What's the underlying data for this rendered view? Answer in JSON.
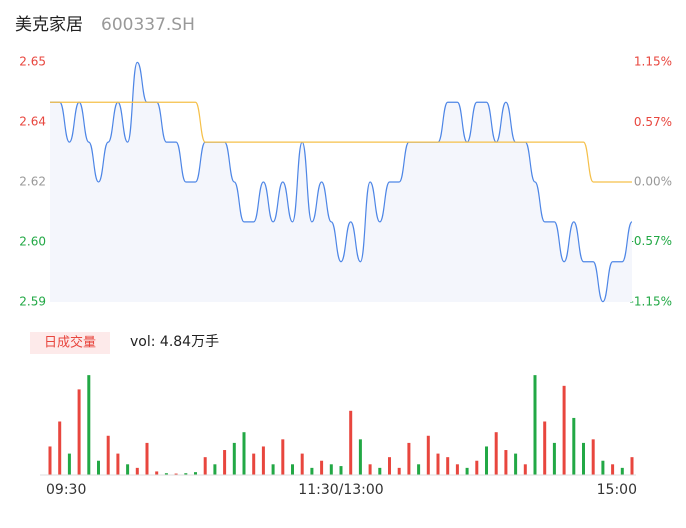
{
  "header": {
    "name": "美克家居",
    "code": "600337.SH"
  },
  "chart_data": [
    {
      "type": "line",
      "ylim": [
        2.5899,
        2.6501
      ],
      "yticks": [
        {
          "value": 2.6501,
          "label": "2.65"
        },
        {
          "value": 2.6351,
          "label": "2.64"
        },
        {
          "value": 2.62,
          "label": "2.62"
        },
        {
          "value": 2.6049,
          "label": "2.60"
        },
        {
          "value": 2.5899,
          "label": "2.59"
        }
      ],
      "y2lim": [
        -1.15,
        1.15
      ],
      "y2ticks": [
        {
          "value": 1.15,
          "label": "1.15%"
        },
        {
          "value": 0.57,
          "label": "0.57%"
        },
        {
          "value": 0,
          "label": "0.00%"
        },
        {
          "value": -0.57,
          "label": "-0.57%"
        },
        {
          "value": -1.15,
          "label": "-1.15%"
        }
      ],
      "series": [
        {
          "color": "#4e86e6",
          "area_color": "#f4f6fc",
          "values": [
            2.64,
            2.64,
            2.63,
            2.64,
            2.63,
            2.62,
            2.63,
            2.64,
            2.63,
            2.65,
            2.64,
            2.64,
            2.63,
            2.63,
            2.62,
            2.62,
            2.63,
            2.63,
            2.63,
            2.62,
            2.61,
            2.61,
            2.62,
            2.61,
            2.62,
            2.61,
            2.63,
            2.61,
            2.62,
            2.61,
            2.6,
            2.61,
            2.6,
            2.62,
            2.61,
            2.62,
            2.62,
            2.63,
            2.63,
            2.63,
            2.63,
            2.64,
            2.64,
            2.63,
            2.64,
            2.64,
            2.63,
            2.64,
            2.63,
            2.63,
            2.62,
            2.61,
            2.61,
            2.6,
            2.61,
            2.6,
            2.6,
            2.59,
            2.6,
            2.6,
            2.61
          ]
        },
        {
          "color": "#f5c04a",
          "values": [
            2.64,
            2.64,
            2.64,
            2.64,
            2.64,
            2.64,
            2.64,
            2.64,
            2.64,
            2.64,
            2.64,
            2.64,
            2.64,
            2.64,
            2.64,
            2.64,
            2.63,
            2.63,
            2.63,
            2.63,
            2.63,
            2.63,
            2.63,
            2.63,
            2.63,
            2.63,
            2.63,
            2.63,
            2.63,
            2.63,
            2.63,
            2.63,
            2.63,
            2.63,
            2.63,
            2.63,
            2.63,
            2.63,
            2.63,
            2.63,
            2.63,
            2.63,
            2.63,
            2.63,
            2.63,
            2.63,
            2.63,
            2.63,
            2.63,
            2.63,
            2.63,
            2.63,
            2.63,
            2.63,
            2.63,
            2.63,
            2.62,
            2.62,
            2.62,
            2.62,
            2.62
          ]
        }
      ],
      "up_color": "#e8463e",
      "flat_color": "#999999",
      "down_color": "#22a845"
    },
    {
      "type": "bar",
      "title": "日成交量",
      "annotation": "vol: 4.84万手",
      "categories": [
        "09:30",
        null,
        null,
        null,
        null,
        null,
        null,
        null,
        null,
        null,
        null,
        null,
        null,
        null,
        null,
        null,
        null,
        null,
        null,
        null,
        null,
        null,
        null,
        null,
        null,
        null,
        null,
        null,
        null,
        null,
        "11:30/13:00",
        null,
        null,
        null,
        null,
        null,
        null,
        null,
        null,
        null,
        null,
        null,
        null,
        null,
        null,
        null,
        null,
        null,
        null,
        null,
        null,
        null,
        null,
        null,
        null,
        null,
        null,
        null,
        null,
        null,
        "15:00"
      ],
      "values": [
        800,
        1500,
        600,
        2400,
        2800,
        400,
        1100,
        600,
        300,
        200,
        900,
        100,
        50,
        40,
        50,
        80,
        500,
        300,
        700,
        900,
        1200,
        600,
        800,
        300,
        1000,
        300,
        600,
        200,
        400,
        300,
        250,
        1800,
        1000,
        300,
        200,
        500,
        200,
        900,
        300,
        1100,
        600,
        500,
        300,
        200,
        400,
        800,
        1200,
        700,
        600,
        300,
        2800,
        1500,
        900,
        2500,
        1600,
        900,
        1000,
        400,
        300,
        200,
        500
      ],
      "colors": [
        "#e8463e",
        "#e8463e",
        "#22a845",
        "#e8463e",
        "#22a845",
        "#22a845",
        "#e8463e",
        "#e8463e",
        "#22a845",
        "#e8463e",
        "#e8463e",
        "#e8463e",
        "#22a845",
        "#e8463e",
        "#22a845",
        "#22a845",
        "#e8463e",
        "#22a845",
        "#e8463e",
        "#22a845",
        "#22a845",
        "#e8463e",
        "#e8463e",
        "#22a845",
        "#e8463e",
        "#22a845",
        "#e8463e",
        "#22a845",
        "#e8463e",
        "#22a845",
        "#22a845",
        "#e8463e",
        "#22a845",
        "#e8463e",
        "#22a845",
        "#e8463e",
        "#e8463e",
        "#e8463e",
        "#22a845",
        "#e8463e",
        "#e8463e",
        "#e8463e",
        "#e8463e",
        "#22a845",
        "#e8463e",
        "#22a845",
        "#e8463e",
        "#e8463e",
        "#22a845",
        "#e8463e",
        "#22a845",
        "#e8463e",
        "#22a845",
        "#e8463e",
        "#22a845",
        "#22a845",
        "#e8463e",
        "#22a845",
        "#e8463e",
        "#22a845",
        "#e8463e"
      ],
      "ylim": [
        0,
        3000
      ]
    }
  ]
}
